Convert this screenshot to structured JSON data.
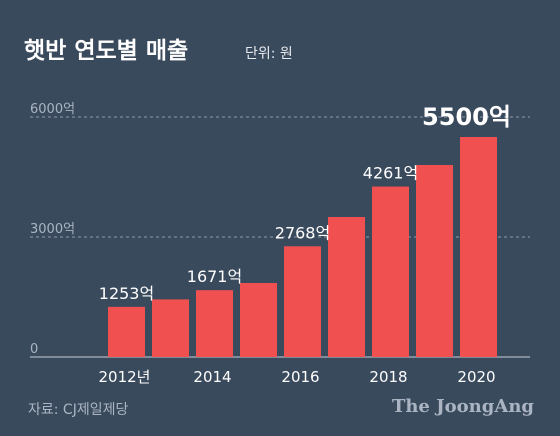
{
  "chart_data": {
    "type": "bar",
    "title": "햇반 연도별 매출",
    "unit_note": "단위: 원",
    "categories": [
      "2012",
      "2013",
      "2014",
      "2015",
      "2016",
      "2017",
      "2018",
      "2019",
      "2020"
    ],
    "values": [
      1253,
      1440,
      1671,
      1850,
      2768,
      3500,
      4261,
      4800,
      5500
    ],
    "data_labels": [
      "1253억",
      "",
      "1671억",
      "",
      "2768억",
      "",
      "4261억",
      "",
      "5500억"
    ],
    "x_tick_labels": [
      "2012년",
      "",
      "2014",
      "",
      "2016",
      "",
      "2018",
      "",
      "2020"
    ],
    "y_ticks": [
      {
        "value": 0,
        "label": "0"
      },
      {
        "value": 3000,
        "label": "3000억"
      },
      {
        "value": 6000,
        "label": "6000억"
      }
    ],
    "ylim": [
      0,
      6000
    ],
    "grid": true,
    "bar_color": "#f05050",
    "background_color": "#3a4a5d"
  },
  "footer": {
    "source": "자료: CJ제일제당",
    "brand": "The JoongAng"
  }
}
